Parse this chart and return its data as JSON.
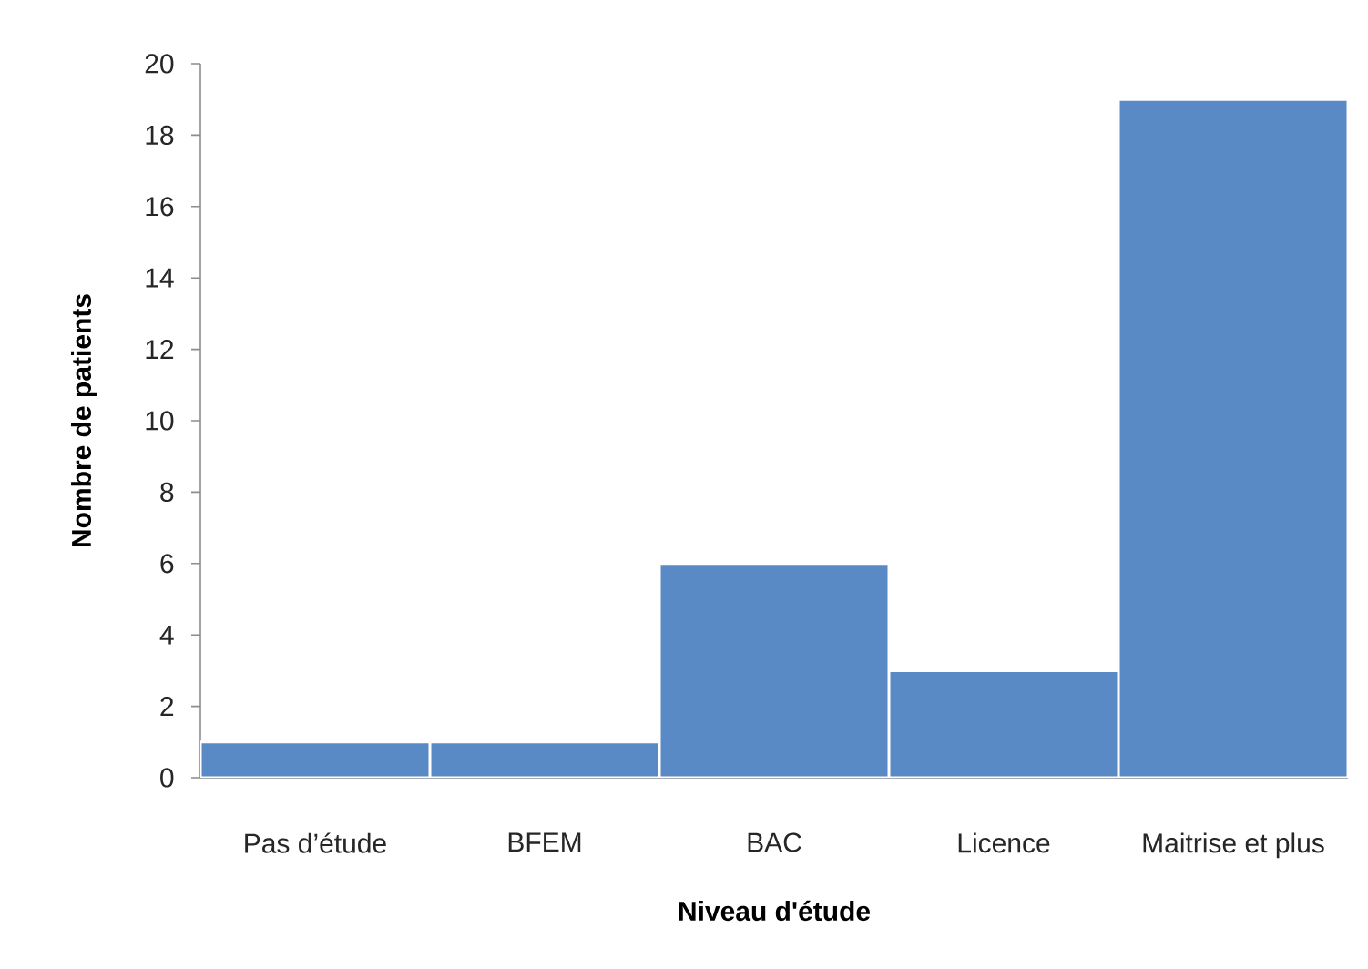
{
  "chart_data": {
    "type": "bar",
    "xlabel": "Niveau d'étude",
    "ylabel": "Nombre de patients",
    "categories": [
      "Pas d’étude",
      "BFEM",
      "BAC",
      "Licence",
      "Maitrise et plus"
    ],
    "values": [
      1,
      1,
      6,
      3,
      19
    ],
    "color": "#5a8ac6",
    "ylim": [
      0,
      20
    ],
    "yticks": [
      0,
      2,
      4,
      6,
      8,
      10,
      12,
      14,
      16,
      18,
      20
    ],
    "grid": false
  }
}
